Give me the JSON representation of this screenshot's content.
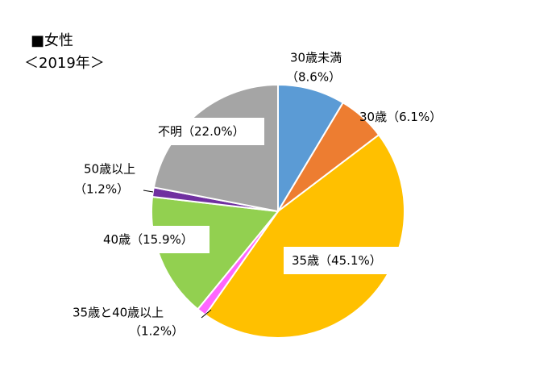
{
  "chart_data": {
    "type": "pie",
    "title": "■女性",
    "subtitle": "＜2019年＞",
    "categories": [
      "30歳未満",
      "30歳",
      "35歳",
      "35歳と40歳以上",
      "40歳",
      "50歳以上",
      "不明"
    ],
    "values": [
      8.6,
      6.1,
      45.1,
      1.2,
      15.9,
      1.2,
      22.0
    ],
    "value_labels": [
      "（8.6%）",
      "（6.1%）",
      "（45.1%）",
      "（1.2%）",
      "（15.9%）",
      "（1.2%）",
      "（22.0%）"
    ],
    "colors": [
      "#5b9bd5",
      "#ed7d31",
      "#ffc000",
      "#ff66ff",
      "#92d050",
      "#7030a0",
      "#a5a5a5"
    ]
  }
}
